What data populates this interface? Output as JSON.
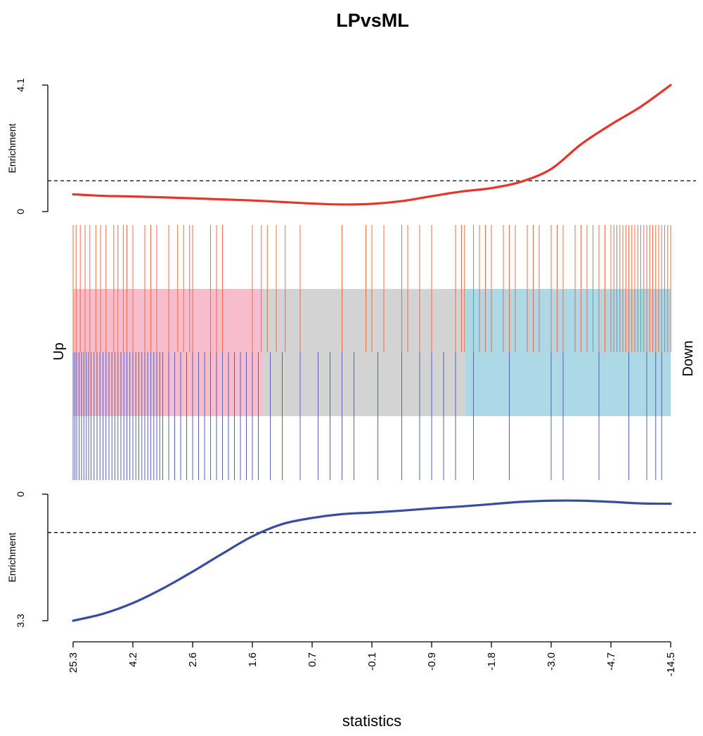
{
  "chart_data": {
    "type": "barcode",
    "title": "LPvsML",
    "xlabel": "statistics",
    "x_tick_labels": [
      "25.3",
      "4.2",
      "2.6",
      "1.6",
      "0.7",
      "-0.1",
      "-0.9",
      "-1.8",
      "-3.0",
      "-4.7",
      "-14.5"
    ],
    "side_labels": {
      "left": "Up",
      "right": "Down"
    },
    "up_panel": {
      "ylabel": "Enrichment",
      "ylim": [
        0,
        4.1
      ],
      "ytick_labels": [
        "0",
        "4.1"
      ],
      "reference_level": 1,
      "line_color": "#e8352a",
      "rank_fraction": [
        0,
        0.05,
        0.1,
        0.2,
        0.3,
        0.4,
        0.45,
        0.5,
        0.55,
        0.6,
        0.65,
        0.7,
        0.75,
        0.8,
        0.85,
        0.9,
        0.95,
        1.0
      ],
      "enrichment": [
        0.56,
        0.51,
        0.49,
        0.43,
        0.36,
        0.26,
        0.23,
        0.25,
        0.34,
        0.5,
        0.65,
        0.76,
        0.97,
        1.38,
        2.18,
        2.82,
        3.4,
        4.1
      ]
    },
    "down_panel": {
      "ylabel": "Enrichment",
      "ylim": [
        0,
        3.3
      ],
      "ytick_labels": [
        "0",
        "3.3"
      ],
      "reference_level": 1,
      "line_color": "#3a4ca0",
      "rank_fraction": [
        0,
        0.05,
        0.1,
        0.15,
        0.2,
        0.25,
        0.3,
        0.35,
        0.4,
        0.45,
        0.5,
        0.55,
        0.6,
        0.65,
        0.7,
        0.75,
        0.8,
        0.85,
        0.9,
        0.95,
        1.0
      ],
      "enrichment": [
        3.3,
        3.12,
        2.84,
        2.46,
        2.02,
        1.55,
        1.1,
        0.78,
        0.62,
        0.52,
        0.48,
        0.43,
        0.37,
        0.32,
        0.26,
        0.2,
        0.17,
        0.17,
        0.2,
        0.24,
        0.25
      ]
    },
    "colors": {
      "up_region": "#f8bdcc",
      "middle_region": "#d3d3d3",
      "down_region": "#add8e6",
      "up_bars": "#f06a4a",
      "down_bars": "#5660b4"
    },
    "region_boundaries": [
      0.317,
      0.656
    ],
    "up_gene_ranks": [
      0.0,
      0.005,
      0.012,
      0.02,
      0.028,
      0.038,
      0.046,
      0.055,
      0.068,
      0.075,
      0.084,
      0.09,
      0.1,
      0.12,
      0.13,
      0.14,
      0.16,
      0.175,
      0.185,
      0.195,
      0.2,
      0.23,
      0.24,
      0.25,
      0.3,
      0.315,
      0.325,
      0.34,
      0.355,
      0.38,
      0.45,
      0.49,
      0.5,
      0.52,
      0.55,
      0.56,
      0.58,
      0.6,
      0.64,
      0.65,
      0.655,
      0.67,
      0.68,
      0.69,
      0.7,
      0.72,
      0.73,
      0.74,
      0.76,
      0.77,
      0.78,
      0.8,
      0.81,
      0.82,
      0.84,
      0.85,
      0.86,
      0.87,
      0.88,
      0.89,
      0.9,
      0.905,
      0.91,
      0.915,
      0.92,
      0.925,
      0.93,
      0.935,
      0.94,
      0.945,
      0.95,
      0.955,
      0.96,
      0.965,
      0.97,
      0.975,
      0.98,
      0.985,
      0.99,
      0.995,
      1.0
    ],
    "down_gene_ranks": [
      0.0,
      0.003,
      0.006,
      0.01,
      0.014,
      0.018,
      0.022,
      0.026,
      0.03,
      0.035,
      0.04,
      0.045,
      0.05,
      0.055,
      0.06,
      0.065,
      0.07,
      0.075,
      0.08,
      0.085,
      0.09,
      0.095,
      0.1,
      0.105,
      0.11,
      0.115,
      0.12,
      0.125,
      0.13,
      0.135,
      0.14,
      0.145,
      0.15,
      0.16,
      0.17,
      0.18,
      0.19,
      0.2,
      0.21,
      0.22,
      0.23,
      0.24,
      0.25,
      0.26,
      0.27,
      0.28,
      0.29,
      0.3,
      0.31,
      0.33,
      0.35,
      0.38,
      0.41,
      0.43,
      0.45,
      0.47,
      0.51,
      0.55,
      0.58,
      0.6,
      0.62,
      0.64,
      0.67,
      0.73,
      0.8,
      0.82,
      0.88,
      0.93,
      0.96,
      0.975,
      0.985
    ]
  }
}
